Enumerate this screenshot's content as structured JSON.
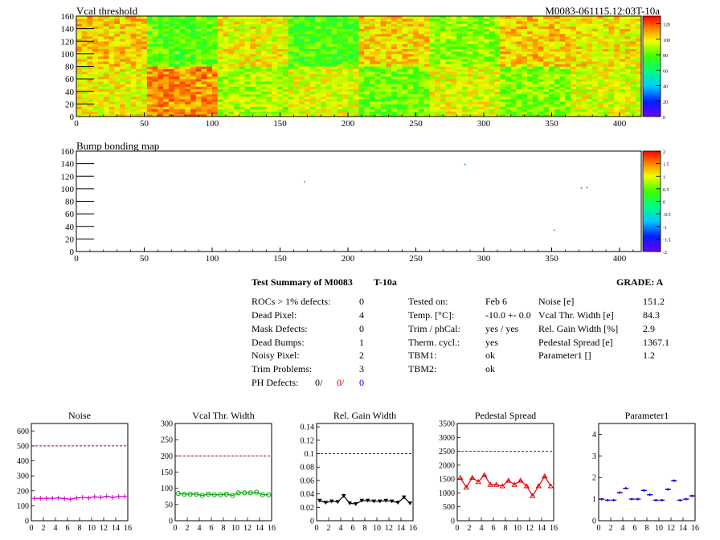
{
  "chart_data": [
    {
      "type": "heatmap",
      "title": "Vcal threshold",
      "label_right": "M0083-061115.12:03T-10a",
      "x_range": [
        0,
        416
      ],
      "y_range": [
        0,
        160
      ],
      "x_ticks": [
        "0",
        "50",
        "100",
        "150",
        "200",
        "250",
        "300",
        "350",
        "400"
      ],
      "y_ticks": [
        "0",
        "20",
        "40",
        "60",
        "80",
        "100",
        "120",
        "140",
        "160"
      ],
      "colorbar_ticks": [
        "0",
        "20",
        "40",
        "60",
        "80",
        "100",
        "120"
      ],
      "colorbar_range": [
        0,
        130
      ],
      "roc_mean_values": {
        "bottom_row": [
          98,
          112,
          90,
          95,
          82,
          96,
          84,
          95
        ],
        "top_row": [
          104,
          80,
          98,
          78,
          102,
          86,
          104,
          100
        ]
      }
    },
    {
      "type": "scatter",
      "title": "Bump bonding map",
      "x_range": [
        0,
        416
      ],
      "y_range": [
        0,
        160
      ],
      "x_ticks": [
        "0",
        "50",
        "100",
        "150",
        "200",
        "250",
        "300",
        "350",
        "400"
      ],
      "y_ticks": [
        "0",
        "20",
        "40",
        "60",
        "80",
        "100",
        "120",
        "140",
        "160"
      ],
      "colorbar_ticks": [
        "2",
        "1.5",
        "1",
        "0.5",
        "0",
        "-0.5",
        "-1",
        "-1.5",
        "-2"
      ],
      "points": [
        {
          "x": 168,
          "y": 111
        },
        {
          "x": 286,
          "y": 139
        },
        {
          "x": 372,
          "y": 101
        },
        {
          "x": 376,
          "y": 102
        },
        {
          "x": 352,
          "y": 34
        }
      ]
    },
    {
      "type": "line",
      "title": "Noise",
      "color": "#cc00cc",
      "marker": "plus",
      "x_range": [
        0,
        16
      ],
      "ylim": [
        0,
        650
      ],
      "limit": 500,
      "y_ticks": [
        "0",
        "100",
        "200",
        "300",
        "400",
        "500",
        "600"
      ],
      "values": [
        150,
        150,
        150,
        150,
        152,
        148,
        144,
        152,
        156,
        152,
        160,
        156,
        164,
        156,
        162,
        162
      ]
    },
    {
      "type": "line",
      "title": "Vcal Thr. Width",
      "color": "#00aa00",
      "marker": "circle",
      "x_range": [
        0,
        16
      ],
      "ylim": [
        0,
        300
      ],
      "limit": 200,
      "y_ticks": [
        "0",
        "50",
        "100",
        "150",
        "200",
        "250",
        "300"
      ],
      "values": [
        84,
        82,
        82,
        82,
        78,
        82,
        80,
        80,
        82,
        78,
        86,
        86,
        86,
        88,
        80,
        80
      ]
    },
    {
      "type": "line",
      "title": "Rel. Gain Width",
      "color": "#000000",
      "marker": "triangle-down",
      "x_range": [
        0,
        16
      ],
      "ylim": [
        0,
        0.145
      ],
      "limit": 0.1,
      "y_ticks": [
        "0",
        "0.02",
        "0.04",
        "0.06",
        "0.08",
        "0.1",
        "0.12",
        "0.14"
      ],
      "values": [
        0.03,
        0.027,
        0.029,
        0.028,
        0.037,
        0.026,
        0.025,
        0.03,
        0.03,
        0.029,
        0.029,
        0.03,
        0.029,
        0.027,
        0.035,
        0.026
      ]
    },
    {
      "type": "line",
      "title": "Pedestal Spread",
      "color": "#dd0000",
      "marker": "triangle-up",
      "x_range": [
        0,
        16
      ],
      "ylim": [
        0,
        3500
      ],
      "limit": 2500,
      "y_ticks": [
        "0",
        "500",
        "1000",
        "1500",
        "2000",
        "2500",
        "3000",
        "3500"
      ],
      "values": [
        1550,
        1200,
        1550,
        1400,
        1650,
        1300,
        1300,
        1250,
        1450,
        1300,
        1450,
        1250,
        900,
        1250,
        1600,
        1250
      ]
    },
    {
      "type": "line",
      "title": "Parameter1",
      "color": "#0000cc",
      "marker": "hbar",
      "x_range": [
        0,
        16
      ],
      "ylim": [
        0,
        4.5
      ],
      "y_ticks": [
        "0",
        "1",
        "2",
        "3",
        "4"
      ],
      "values": [
        1.0,
        0.95,
        0.95,
        1.3,
        1.5,
        1.0,
        1.0,
        1.4,
        1.2,
        0.95,
        0.95,
        1.45,
        1.85,
        0.95,
        1.0,
        1.15
      ]
    }
  ],
  "x_small_ticks": [
    "0",
    "2",
    "4",
    "6",
    "8",
    "10",
    "12",
    "14",
    "16"
  ],
  "summary": {
    "title": "Test Summary of M0083",
    "temp_label": "T-10a",
    "grade": "GRADE:  A",
    "left": [
      {
        "label": "ROCs > 1% defects:",
        "value": "0"
      },
      {
        "label": "Dead Pixel:",
        "value": "4"
      },
      {
        "label": "Mask Defects:",
        "value": "0"
      },
      {
        "label": "Dead Bumps:",
        "value": "1"
      },
      {
        "label": "Noisy Pixel:",
        "value": "2"
      },
      {
        "label": "Trim Problems:",
        "value": "3"
      }
    ],
    "ph_defects": {
      "label": "PH Defects:",
      "v1": "0/",
      "v2": "0/",
      "v3": "0"
    },
    "middle": [
      {
        "label": "Tested on:",
        "value": "Feb 6"
      },
      {
        "label": "Temp. [°C]:",
        "value": "-10.0 +- 0.0"
      },
      {
        "label": "Trim / phCal:",
        "value": "yes / yes"
      },
      {
        "label": "Therm. cycl.:",
        "value": "yes"
      },
      {
        "label": "TBM1:",
        "value": "ok"
      },
      {
        "label": "TBM2:",
        "value": "ok"
      }
    ],
    "right": [
      {
        "label": "Noise [e]",
        "value": "151.2"
      },
      {
        "label": "Vcal Thr. Width [e]",
        "value": "84.3"
      },
      {
        "label": "Rel. Gain Width [%]",
        "value": "2.9"
      },
      {
        "label": "Pedestal Spread [e]",
        "value": "1367.1"
      },
      {
        "label": "Parameter1 []",
        "value": "1.2"
      }
    ]
  },
  "colors": {
    "accent_line": "#b00000",
    "axis": "#000000"
  }
}
